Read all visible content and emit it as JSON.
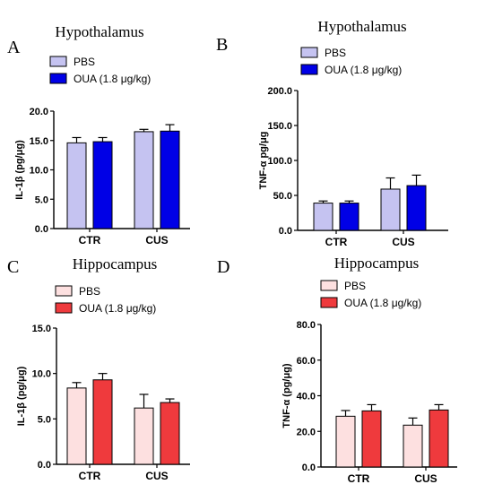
{
  "chart_data": [
    {
      "type": "bar",
      "panel": "A",
      "title": "Hypothalamus",
      "ylabel": "IL-1β (pg/μg)",
      "categories": [
        "CTR",
        "CUS"
      ],
      "ylim": [
        0,
        20
      ],
      "yticks": [
        "0.0",
        "5.0",
        "10.0",
        "15.0",
        "20.0"
      ],
      "series": [
        {
          "name": "PBS",
          "color": "#c5c3f1",
          "values": [
            14.6,
            16.5
          ],
          "errors": [
            0.9,
            0.4
          ]
        },
        {
          "name": "OUA (1.8 μg/kg)",
          "color": "#0000e6",
          "values": [
            14.8,
            16.6
          ],
          "errors": [
            0.7,
            1.1
          ]
        }
      ]
    },
    {
      "type": "bar",
      "panel": "B",
      "title": "Hypothalamus",
      "ylabel": "TNF-α pg/μg",
      "categories": [
        "CTR",
        "CUS"
      ],
      "ylim": [
        0,
        200
      ],
      "yticks": [
        "0.0",
        "50.0",
        "100.0",
        "150.0",
        "200.0"
      ],
      "series": [
        {
          "name": "PBS",
          "color": "#c5c3f1",
          "values": [
            39,
            59
          ],
          "errors": [
            3,
            16
          ]
        },
        {
          "name": "OUA (1.8 μg/kg)",
          "color": "#0000e6",
          "values": [
            39,
            64
          ],
          "errors": [
            3,
            15
          ]
        }
      ]
    },
    {
      "type": "bar",
      "panel": "C",
      "title": "Hippocampus",
      "ylabel": "IL-1β (pg/μg)",
      "categories": [
        "CTR",
        "CUS"
      ],
      "ylim": [
        0,
        15
      ],
      "yticks": [
        "0.0",
        "5.0",
        "10.0",
        "15.0"
      ],
      "series": [
        {
          "name": "PBS",
          "color": "#fde0e0",
          "values": [
            8.4,
            6.2
          ],
          "errors": [
            0.6,
            1.5
          ]
        },
        {
          "name": "OUA (1.8 μg/kg)",
          "color": "#ef3a3d",
          "values": [
            9.3,
            6.8
          ],
          "errors": [
            0.7,
            0.4
          ]
        }
      ]
    },
    {
      "type": "bar",
      "panel": "D",
      "title": "Hippocampus",
      "ylabel": "TNF-α (pg/μg)",
      "categories": [
        "CTR",
        "CUS"
      ],
      "ylim": [
        0,
        80
      ],
      "yticks": [
        "0.0",
        "20.0",
        "40.0",
        "60.0",
        "80.0"
      ],
      "series": [
        {
          "name": "PBS",
          "color": "#fde0e0",
          "values": [
            28.5,
            23.5
          ],
          "errors": [
            3.2,
            4.0
          ]
        },
        {
          "name": "OUA (1.8 μg/kg)",
          "color": "#ef3a3d",
          "values": [
            31.5,
            32.0
          ],
          "errors": [
            3.5,
            3.0
          ]
        }
      ]
    }
  ]
}
